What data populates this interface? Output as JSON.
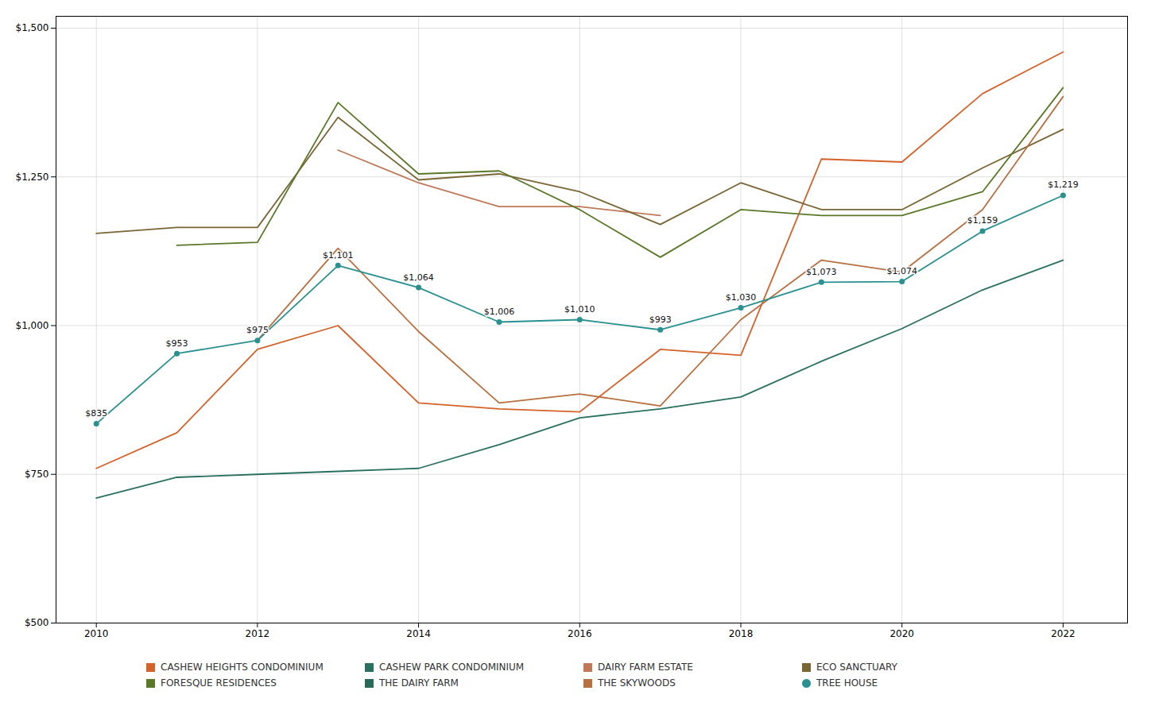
{
  "chart_data": {
    "type": "line",
    "x": [
      2010,
      2011,
      2012,
      2013,
      2014,
      2015,
      2016,
      2017,
      2018,
      2019,
      2020,
      2021,
      2022
    ],
    "series": [
      {
        "name": "CASHEW HEIGHTS CONDOMINIUM",
        "color": "#d4622a",
        "values": [
          760,
          820,
          960,
          1000,
          870,
          860,
          855,
          960,
          950,
          1280,
          1275,
          1390,
          1460
        ]
      },
      {
        "name": "CASHEW PARK CONDOMINIUM",
        "color": "#2a7060",
        "values": [
          710,
          745,
          750,
          755,
          760,
          800,
          845,
          860,
          880,
          940,
          995,
          1060,
          1110
        ]
      },
      {
        "name": "DAIRY FARM ESTATE",
        "color": "#c07858",
        "values": [
          null,
          null,
          null,
          1295,
          1240,
          1200,
          1200,
          1185,
          null,
          null,
          null,
          null,
          null
        ]
      },
      {
        "name": "ECO SANCTUARY",
        "color": "#7a6535",
        "values": [
          1155,
          1165,
          1165,
          1350,
          1245,
          1255,
          1225,
          1170,
          1240,
          1195,
          1195,
          1265,
          1330
        ]
      },
      {
        "name": "FORESQUE RESIDENCES",
        "color": "#5a7828",
        "values": [
          null,
          1135,
          1140,
          1375,
          1255,
          1260,
          1195,
          1115,
          1195,
          1185,
          1185,
          1225,
          1400
        ]
      },
      {
        "name": "THE DAIRY FARM",
        "color": "#2a6858",
        "values": [
          null,
          null,
          null,
          null,
          null,
          null,
          null,
          null,
          null,
          null,
          null,
          null,
          null
        ]
      },
      {
        "name": "THE SKYWOODS",
        "color": "#b87040",
        "values": [
          null,
          null,
          975,
          1130,
          990,
          870,
          885,
          865,
          1010,
          1110,
          1090,
          1195,
          1385
        ]
      },
      {
        "name": "TREE HOUSE",
        "color": "#2a9090",
        "marker": "circle",
        "values": [
          835,
          953,
          975,
          1101,
          1064,
          1006,
          1010,
          993,
          1030,
          1073,
          1074,
          1159,
          1219
        ]
      }
    ],
    "annotations": [
      {
        "x": 2010,
        "y": 835,
        "text": "$835"
      },
      {
        "x": 2011,
        "y": 953,
        "text": "$953"
      },
      {
        "x": 2012,
        "y": 975,
        "text": "$975"
      },
      {
        "x": 2013,
        "y": 1101,
        "text": "$1,101"
      },
      {
        "x": 2014,
        "y": 1064,
        "text": "$1,064"
      },
      {
        "x": 2015,
        "y": 1006,
        "text": "$1,006"
      },
      {
        "x": 2016,
        "y": 1010,
        "text": "$1,010"
      },
      {
        "x": 2017,
        "y": 993,
        "text": "$993"
      },
      {
        "x": 2018,
        "y": 1030,
        "text": "$1,030"
      },
      {
        "x": 2019,
        "y": 1073,
        "text": "$1,073"
      },
      {
        "x": 2020,
        "y": 1074,
        "text": "$1,074"
      },
      {
        "x": 2021,
        "y": 1159,
        "text": "$1,159"
      },
      {
        "x": 2022,
        "y": 1219,
        "text": "$1,219"
      }
    ],
    "xlim": [
      2009.5,
      2022.8
    ],
    "xticks": [
      2010,
      2012,
      2014,
      2016,
      2018,
      2020,
      2022
    ],
    "ylim": [
      500,
      1520
    ],
    "yticks": [
      {
        "value": 500,
        "label": "$500"
      },
      {
        "value": 750,
        "label": "$750"
      },
      {
        "value": 1000,
        "label": "$1,000"
      },
      {
        "value": 1250,
        "label": "$1,250"
      },
      {
        "value": 1500,
        "label": "$1,500"
      }
    ],
    "grid": true,
    "legend": "bottom"
  }
}
